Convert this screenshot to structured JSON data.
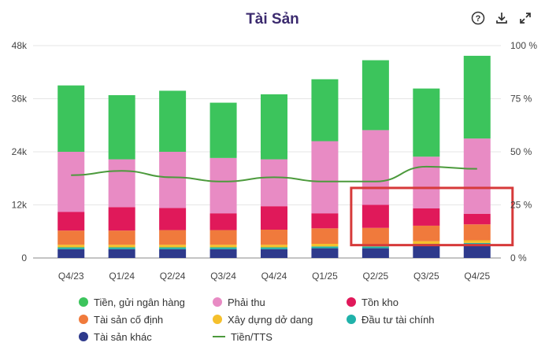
{
  "header": {
    "title": "Tài Sản",
    "tools": [
      {
        "icon": "help-icon",
        "glyph": "?"
      },
      {
        "icon": "download-icon",
        "glyph": "⤓"
      },
      {
        "icon": "expand-icon",
        "glyph": "⤢"
      }
    ]
  },
  "chart_data": {
    "type": "bar",
    "stacked": true,
    "title": "Tài Sản",
    "categories": [
      "Q4/23",
      "Q1/24",
      "Q2/24",
      "Q3/24",
      "Q4/24",
      "Q1/25",
      "Q2/25",
      "Q3/25",
      "Q4/25"
    ],
    "y_left": {
      "ticks": [
        "0",
        "12k",
        "24k",
        "36k",
        "48k"
      ],
      "range": [
        0,
        48000
      ]
    },
    "y_right": {
      "ticks": [
        "0 %",
        "25 %",
        "50 %",
        "75 %",
        "100 %"
      ],
      "range": [
        0,
        100
      ]
    },
    "series": [
      {
        "name": "Tài sản khác",
        "color": "#2e3a8c",
        "values": [
          2000,
          2000,
          2000,
          2000,
          2000,
          2200,
          2200,
          2800,
          3000
        ]
      },
      {
        "name": "Đầu tư tài chính",
        "color": "#20b2aa",
        "values": [
          400,
          400,
          400,
          400,
          400,
          400,
          400,
          400,
          400
        ]
      },
      {
        "name": "Xây dựng dở dang",
        "color": "#f5c02c",
        "values": [
          600,
          600,
          600,
          600,
          600,
          600,
          600,
          600,
          600
        ]
      },
      {
        "name": "Tài sản cố định",
        "color": "#f07a3c",
        "values": [
          3200,
          3200,
          3300,
          3300,
          3400,
          3500,
          3600,
          3500,
          3600
        ]
      },
      {
        "name": "Tồn kho",
        "color": "#e0195a",
        "values": [
          4200,
          5300,
          5000,
          3800,
          5300,
          3400,
          5200,
          3900,
          2400
        ]
      },
      {
        "name": "Phải thu",
        "color": "#e88bc4",
        "values": [
          13600,
          10800,
          12700,
          12500,
          10600,
          16300,
          16900,
          11700,
          17000
        ]
      },
      {
        "name": "Tiền, gửi ngân hàng",
        "color": "#3cc45c",
        "values": [
          15000,
          14500,
          13800,
          12500,
          14700,
          14000,
          15800,
          15400,
          18700
        ]
      }
    ],
    "line": {
      "name": "Tiền/TTS",
      "color": "#4c9a3c",
      "axis": "right",
      "values": [
        39,
        41,
        38,
        36,
        38,
        36,
        36,
        43,
        42
      ]
    },
    "legend_position": "bottom",
    "grid": {
      "horizontal": true,
      "vertical": false
    }
  },
  "legend": [
    {
      "label": "Tiền, gửi ngân hàng",
      "color": "#3cc45c",
      "kind": "dot"
    },
    {
      "label": "Phải thu",
      "color": "#e88bc4",
      "kind": "dot"
    },
    {
      "label": "Tồn kho",
      "color": "#e0195a",
      "kind": "dot"
    },
    {
      "label": "Tài sản cố định",
      "color": "#f07a3c",
      "kind": "dot"
    },
    {
      "label": "Xây dựng dở dang",
      "color": "#f5c02c",
      "kind": "dot"
    },
    {
      "label": "Đầu tư tài chính",
      "color": "#20b2aa",
      "kind": "dot"
    },
    {
      "label": "Tài sản khác",
      "color": "#2e3a8c",
      "kind": "dot"
    },
    {
      "label": "Tiền/TTS",
      "color": "#4c9a3c",
      "kind": "line"
    }
  ],
  "annotation": {
    "kind": "highlight-box",
    "color": "#d63a3a",
    "covers": [
      "Q2/25",
      "Q3/25",
      "Q4/25"
    ],
    "y_range": [
      5400,
      13700
    ]
  }
}
